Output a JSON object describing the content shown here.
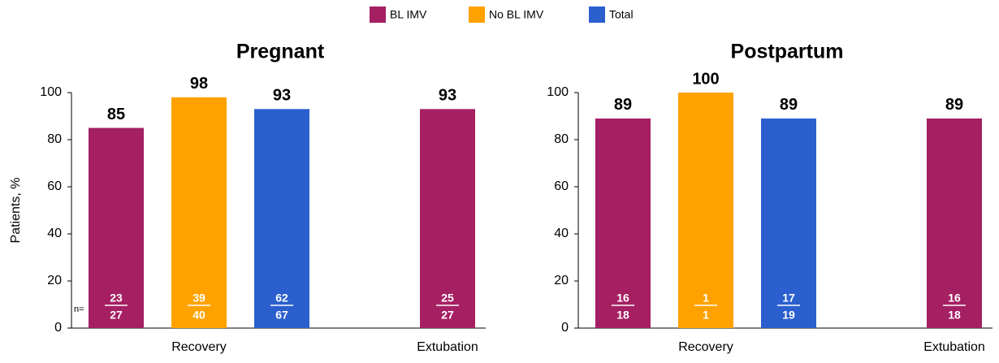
{
  "chart_data": [
    {
      "type": "bar",
      "title": "Pregnant",
      "ylabel": "Patients, %",
      "annotation": "n=",
      "categories": [
        "Recovery",
        "Extubation"
      ],
      "series": [
        {
          "name": "BL IMV",
          "color": "#a51f63",
          "values": [
            85,
            93
          ],
          "numerators": [
            23,
            25
          ],
          "denominators": [
            27,
            27
          ]
        },
        {
          "name": "No BL IMV",
          "color": "#ffa200",
          "values": [
            98,
            null
          ],
          "numerators": [
            39,
            null
          ],
          "denominators": [
            40,
            null
          ]
        },
        {
          "name": "Total",
          "color": "#2b5fce",
          "values": [
            93,
            null
          ],
          "numerators": [
            62,
            null
          ],
          "denominators": [
            67,
            null
          ]
        }
      ],
      "ylim": [
        0,
        100
      ],
      "yticks": [
        0,
        20,
        40,
        60,
        80,
        100
      ]
    },
    {
      "type": "bar",
      "title": "Postpartum",
      "categories": [
        "Recovery",
        "Extubation"
      ],
      "series": [
        {
          "name": "BL IMV",
          "color": "#a51f63",
          "values": [
            89,
            89
          ],
          "numerators": [
            16,
            16
          ],
          "denominators": [
            18,
            18
          ]
        },
        {
          "name": "No BL IMV",
          "color": "#ffa200",
          "values": [
            100,
            null
          ],
          "numerators": [
            1,
            null
          ],
          "denominators": [
            1,
            null
          ]
        },
        {
          "name": "Total",
          "color": "#2b5fce",
          "values": [
            89,
            null
          ],
          "numerators": [
            17,
            null
          ],
          "denominators": [
            19,
            null
          ]
        }
      ],
      "ylim": [
        0,
        100
      ],
      "yticks": [
        0,
        20,
        40,
        60,
        80,
        100
      ]
    }
  ]
}
